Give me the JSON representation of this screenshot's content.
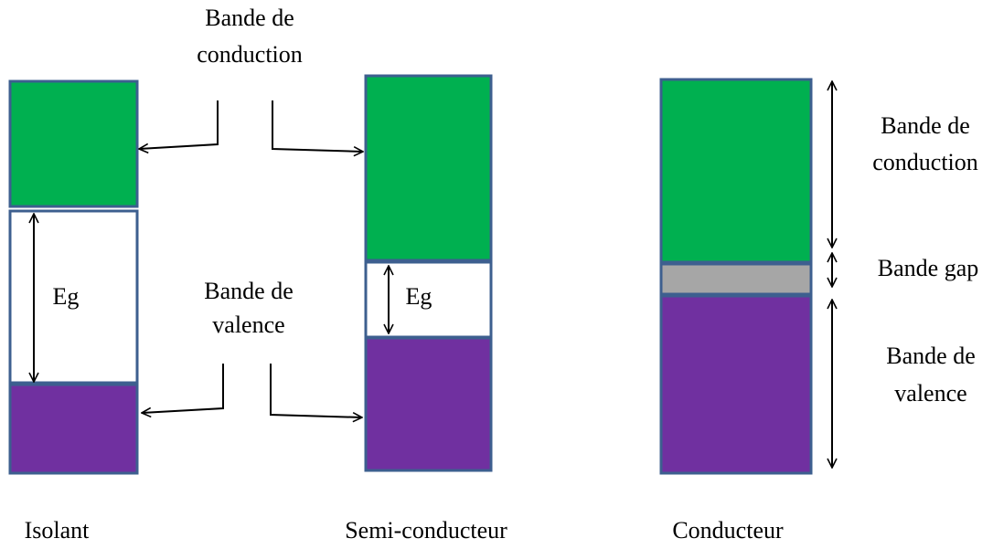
{
  "labels": {
    "top_conduction": [
      "Bande de",
      "conduction"
    ],
    "middle_valence": [
      "Bande de",
      "valence"
    ],
    "eg_isolant": "Eg",
    "eg_semi": "Eg",
    "right_conduction": [
      "Bande de",
      "conduction"
    ],
    "right_gap": "Bande gap",
    "right_valence": [
      "Bande de",
      "valence"
    ]
  },
  "materials": [
    "Isolant",
    "Semi-conducteur",
    "Conducteur"
  ]
}
